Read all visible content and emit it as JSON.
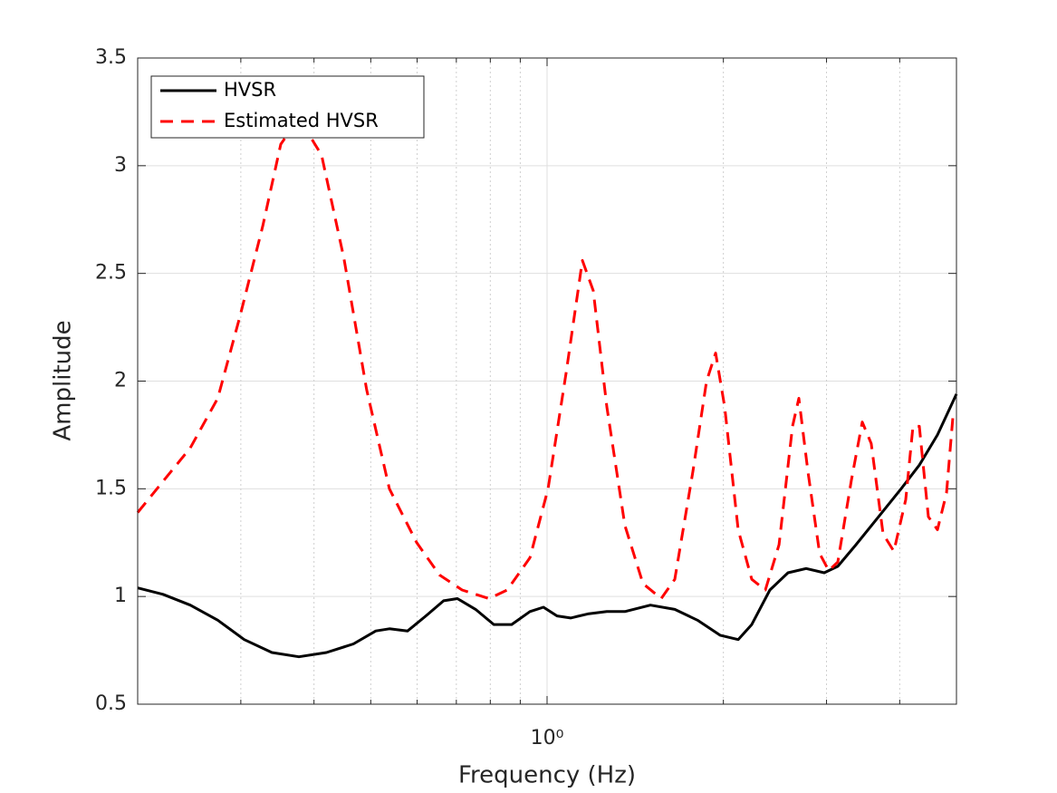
{
  "chart_data": {
    "type": "line",
    "xlabel": "Frequency (Hz)",
    "ylabel": "Amplitude",
    "xscale": "log",
    "xlim": [
      0.2,
      5
    ],
    "ylim": [
      0.5,
      3.5
    ],
    "xticks": [
      {
        "value": 1,
        "label": "10⁰"
      }
    ],
    "xminorticks": [
      0.3,
      0.4,
      0.5,
      0.6,
      0.7,
      0.8,
      0.9,
      2,
      3,
      4
    ],
    "yticks": [
      0.5,
      1,
      1.5,
      2,
      2.5,
      3,
      3.5
    ],
    "grid": true,
    "legend": "northwest",
    "series": [
      {
        "name": "HVSR",
        "color": "#000000",
        "linestyle": "solid",
        "x": [
          0.2,
          0.221,
          0.246,
          0.274,
          0.304,
          0.339,
          0.377,
          0.42,
          0.467,
          0.51,
          0.538,
          0.578,
          0.621,
          0.666,
          0.703,
          0.755,
          0.811,
          0.87,
          0.935,
          0.986,
          1.04,
          1.097,
          1.178,
          1.265,
          1.358,
          1.501,
          1.652,
          1.806,
          1.974,
          2.12,
          2.236,
          2.401,
          2.578,
          2.769,
          2.973,
          3.136,
          3.368,
          3.681,
          4.022,
          4.321,
          4.639,
          5.0
        ],
        "values": [
          1.04,
          1.01,
          0.96,
          0.89,
          0.8,
          0.74,
          0.72,
          0.74,
          0.78,
          0.84,
          0.85,
          0.84,
          0.91,
          0.98,
          0.99,
          0.94,
          0.87,
          0.87,
          0.93,
          0.95,
          0.91,
          0.9,
          0.92,
          0.93,
          0.93,
          0.96,
          0.94,
          0.89,
          0.82,
          0.8,
          0.87,
          1.03,
          1.11,
          1.13,
          1.11,
          1.14,
          1.24,
          1.37,
          1.5,
          1.61,
          1.75,
          1.94
        ]
      },
      {
        "name": "Estimated HVSR",
        "color": "#ff0000",
        "linestyle": "dashed",
        "x": [
          0.2,
          0.246,
          0.274,
          0.299,
          0.327,
          0.351,
          0.377,
          0.412,
          0.45,
          0.492,
          0.538,
          0.599,
          0.655,
          0.716,
          0.796,
          0.855,
          0.935,
          1.004,
          1.078,
          1.149,
          1.199,
          1.265,
          1.358,
          1.458,
          1.566,
          1.652,
          1.774,
          1.872,
          1.94,
          2.01,
          2.12,
          2.236,
          2.359,
          2.489,
          2.625,
          2.691,
          2.788,
          2.92,
          3.026,
          3.136,
          3.308,
          3.452,
          3.577,
          3.747,
          3.91,
          4.096,
          4.215,
          4.321,
          4.477,
          4.639,
          4.808,
          4.929,
          5.0
        ],
        "values": [
          1.39,
          1.69,
          1.92,
          2.3,
          2.72,
          3.1,
          3.22,
          3.05,
          2.57,
          1.96,
          1.5,
          1.25,
          1.1,
          1.03,
          0.99,
          1.03,
          1.18,
          1.5,
          2.04,
          2.56,
          2.42,
          1.88,
          1.33,
          1.06,
          0.99,
          1.08,
          1.58,
          2.0,
          2.13,
          1.88,
          1.31,
          1.08,
          1.03,
          1.24,
          1.79,
          1.92,
          1.58,
          1.2,
          1.12,
          1.16,
          1.54,
          1.81,
          1.71,
          1.29,
          1.21,
          1.45,
          1.79,
          1.79,
          1.37,
          1.31,
          1.48,
          1.83,
          1.83
        ]
      }
    ]
  }
}
